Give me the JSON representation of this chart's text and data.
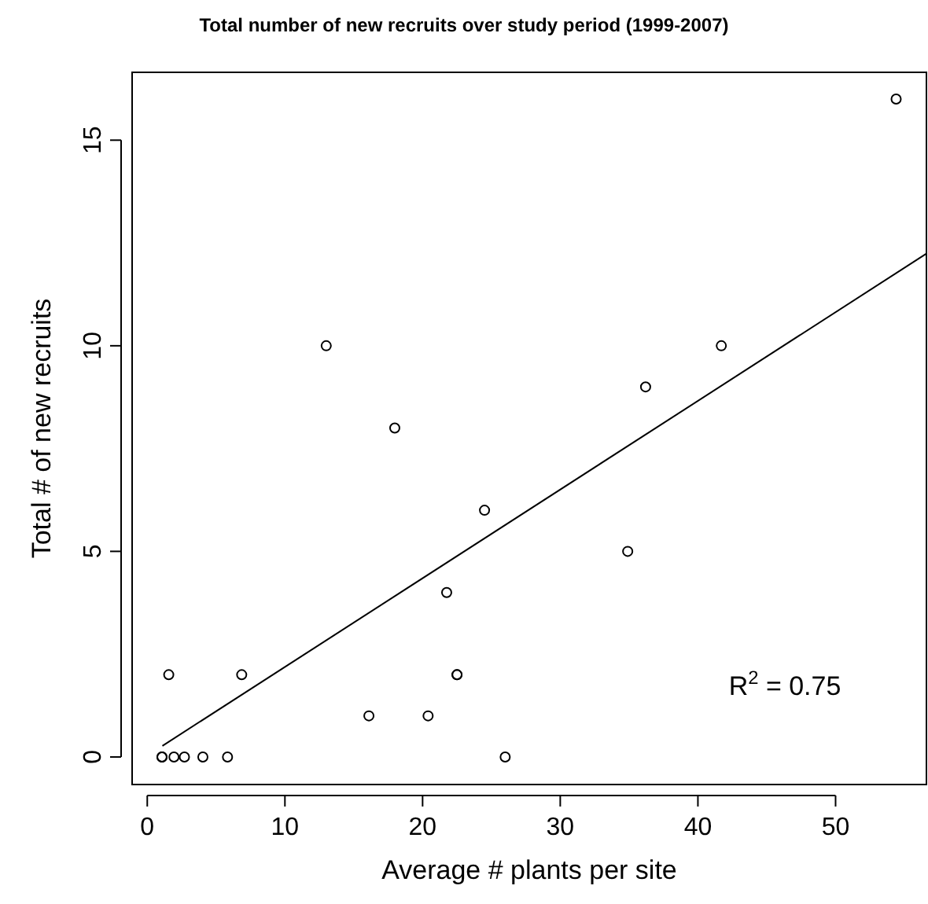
{
  "chart_data": {
    "type": "scatter",
    "title": "Total number of new recruits over study period (1999-2007)",
    "xlabel": "Average # plants per site",
    "ylabel": "Total # of new recruits",
    "xlim": [
      -1.1,
      56.6
    ],
    "ylim": [
      -0.67,
      16.65
    ],
    "xticks": [
      0,
      10,
      20,
      30,
      40,
      50
    ],
    "yticks": [
      0,
      5,
      10,
      15
    ],
    "grid": false,
    "marker": "circle",
    "annotations": [
      "R$^{2}$ = 0.75"
    ],
    "series": [
      {
        "color": "#000000",
        "x": [
          1.07,
          1.07,
          1.94,
          2.7,
          4.04,
          5.83,
          1.56,
          6.86,
          13.0,
          17.98,
          24.5,
          21.75,
          22.5,
          22.5,
          16.1,
          20.4,
          26.0,
          54.4,
          41.7,
          36.2,
          34.9
        ],
        "values": [
          0,
          0,
          0,
          0,
          0,
          0,
          2,
          2,
          10,
          8,
          6,
          4,
          2,
          2,
          1,
          1,
          0,
          16,
          10,
          9,
          5
        ]
      },
      {
        "type": "line",
        "color": "#000000",
        "marker": "none",
        "line_style": "solid",
        "x": [
          1.1,
          56.6
        ],
        "values": [
          0.27,
          12.24
        ]
      }
    ]
  }
}
